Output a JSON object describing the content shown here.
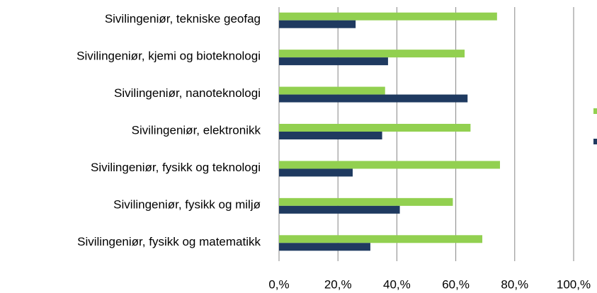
{
  "chart_data": {
    "type": "hbar",
    "categories": [
      "Sivilingeniør, tekniske geofag",
      "Sivilingeniør, kjemi og bioteknologi",
      "Sivilingeniør, nanoteknologi",
      "Sivilingeniør, elektronikk",
      "Sivilingeniør, fysikk og teknologi",
      "Sivilingeniør, fysikk og miljø",
      "Sivilingeniør, fysikk og matematikk"
    ],
    "series": [
      {
        "color": "#92d050",
        "values": [
          74,
          63,
          36,
          65,
          75,
          59,
          69
        ]
      },
      {
        "color": "#1f3a60",
        "values": [
          26,
          37,
          64,
          35,
          25,
          41,
          31
        ]
      }
    ],
    "xlim": [
      0,
      100
    ],
    "xticks": [
      {
        "value": 0,
        "label": "0,%"
      },
      {
        "value": 20,
        "label": "20,%"
      },
      {
        "value": 40,
        "label": "40,%"
      },
      {
        "value": 60,
        "label": "60,%"
      },
      {
        "value": 80,
        "label": "80,%"
      },
      {
        "value": 100,
        "label": "100,%"
      }
    ],
    "grid": true
  }
}
